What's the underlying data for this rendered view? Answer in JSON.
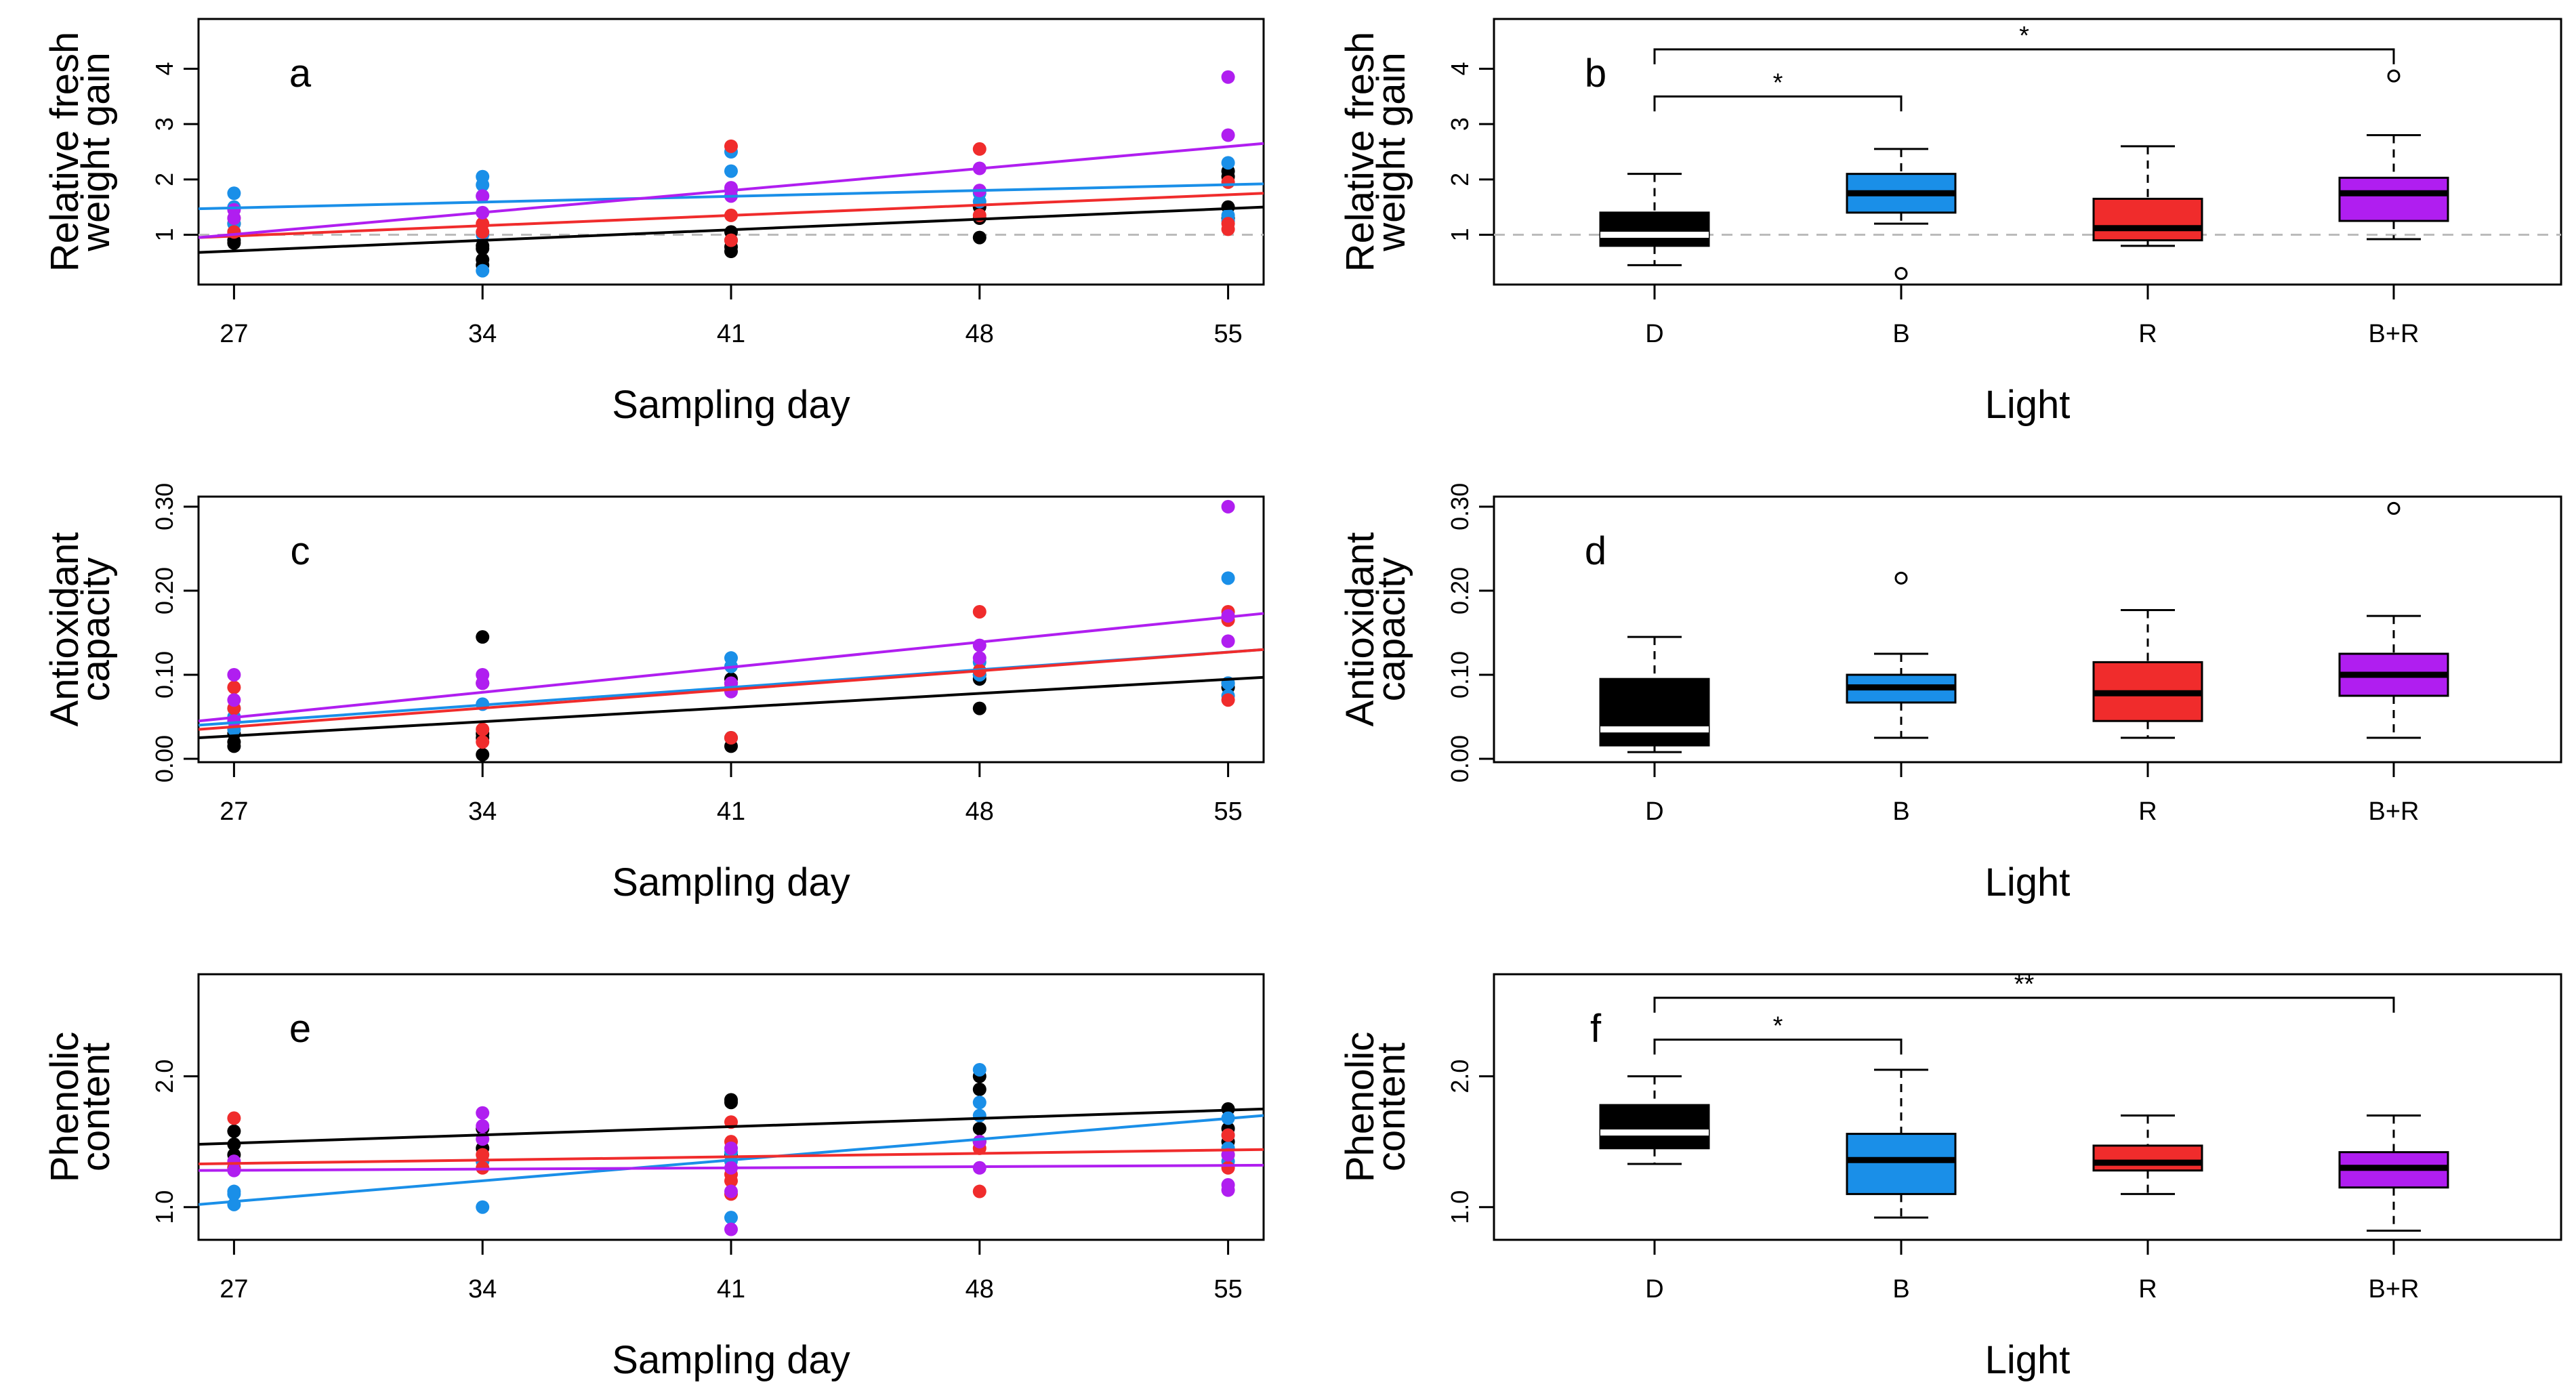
{
  "colors": {
    "D": "#000000",
    "B": "#1a8fe8",
    "R": "#f02c2c",
    "B+R": "#b01ef0",
    "reference_line": "#bbbbbb",
    "axis": "#000000",
    "median_on_dark": "#ffffff"
  },
  "chart_data": [
    {
      "id": "a",
      "type": "scatter",
      "panel_label": "a",
      "xlabel": "Sampling day",
      "ylabel_lines": [
        "Relative fresh",
        "weight gain"
      ],
      "x_ticks": [
        27,
        34,
        41,
        48,
        55
      ],
      "x_tick_labels": [
        "27",
        "34",
        "41",
        "48",
        "55"
      ],
      "y_ticks": [
        1,
        2,
        3,
        4
      ],
      "y_tick_labels": [
        "1",
        "2",
        "3",
        "4"
      ],
      "xlim": [
        26,
        56
      ],
      "ylim": [
        0.1,
        4.9
      ],
      "reference_y": 1.0,
      "series": [
        {
          "name": "D",
          "points": [
            [
              27,
              0.85
            ],
            [
              27,
              0.9
            ],
            [
              27,
              1.05
            ],
            [
              27,
              1.2
            ],
            [
              34,
              0.45
            ],
            [
              34,
              0.55
            ],
            [
              34,
              0.75
            ],
            [
              34,
              0.8
            ],
            [
              41,
              0.7
            ],
            [
              41,
              0.78
            ],
            [
              41,
              0.9
            ],
            [
              41,
              1.05
            ],
            [
              48,
              0.95
            ],
            [
              48,
              1.3
            ],
            [
              48,
              1.5
            ],
            [
              55,
              1.3
            ],
            [
              55,
              1.5
            ],
            [
              55,
              2.05
            ],
            [
              55,
              2.15
            ]
          ],
          "fit": [
            0.68,
            1.5
          ]
        },
        {
          "name": "B",
          "points": [
            [
              27,
              1.2
            ],
            [
              27,
              1.5
            ],
            [
              27,
              1.75
            ],
            [
              34,
              0.35
            ],
            [
              34,
              1.0
            ],
            [
              34,
              1.7
            ],
            [
              34,
              1.9
            ],
            [
              34,
              2.05
            ],
            [
              41,
              1.8
            ],
            [
              41,
              2.15
            ],
            [
              41,
              2.5
            ],
            [
              48,
              1.6
            ],
            [
              48,
              1.75
            ],
            [
              55,
              1.25
            ],
            [
              55,
              1.35
            ],
            [
              55,
              2.3
            ]
          ],
          "fit": [
            1.47,
            1.92
          ]
        },
        {
          "name": "R",
          "points": [
            [
              27,
              1.05
            ],
            [
              27,
              1.3
            ],
            [
              34,
              1.05
            ],
            [
              34,
              1.2
            ],
            [
              41,
              0.9
            ],
            [
              41,
              1.35
            ],
            [
              41,
              2.6
            ],
            [
              48,
              1.35
            ],
            [
              48,
              2.55
            ],
            [
              55,
              1.1
            ],
            [
              55,
              1.2
            ],
            [
              55,
              1.95
            ]
          ],
          "fit": [
            0.95,
            1.75
          ]
        },
        {
          "name": "B+R",
          "points": [
            [
              27,
              1.3
            ],
            [
              27,
              1.45
            ],
            [
              34,
              1.4
            ],
            [
              34,
              1.7
            ],
            [
              41,
              1.7
            ],
            [
              41,
              1.85
            ],
            [
              48,
              2.2
            ],
            [
              48,
              1.8
            ],
            [
              55,
              2.8
            ],
            [
              55,
              3.85
            ]
          ],
          "fit": [
            0.95,
            2.65
          ]
        }
      ]
    },
    {
      "id": "b",
      "type": "boxplot",
      "panel_label": "b",
      "xlabel": "Light",
      "ylabel_lines": [
        "Relative fresh",
        "weight gain"
      ],
      "categories": [
        "D",
        "B",
        "R",
        "B+R"
      ],
      "y_ticks": [
        1,
        2,
        3,
        4
      ],
      "y_tick_labels": [
        "1",
        "2",
        "3",
        "4"
      ],
      "ylim": [
        0.1,
        4.9
      ],
      "reference_y": 1.0,
      "boxes": [
        {
          "name": "D",
          "min": 0.45,
          "q1": 0.8,
          "median": 1.0,
          "q3": 1.4,
          "max": 2.1,
          "outliers": []
        },
        {
          "name": "B",
          "min": 1.2,
          "q1": 1.4,
          "median": 1.75,
          "q3": 2.1,
          "max": 2.55,
          "outliers": [
            0.3
          ]
        },
        {
          "name": "R",
          "min": 0.8,
          "q1": 0.9,
          "median": 1.12,
          "q3": 1.65,
          "max": 2.6,
          "outliers": []
        },
        {
          "name": "B+R",
          "min": 0.92,
          "q1": 1.25,
          "median": 1.75,
          "q3": 2.03,
          "max": 2.8,
          "outliers": [
            3.87
          ]
        }
      ],
      "significance": [
        {
          "from": "D",
          "to": "B",
          "y": 3.5,
          "label": "*"
        },
        {
          "from": "D",
          "to": "B+R",
          "y": 4.35,
          "label": "*"
        }
      ]
    },
    {
      "id": "c",
      "type": "scatter",
      "panel_label": "c",
      "xlabel": "Sampling day",
      "ylabel_lines": [
        "Antioxidant",
        "capacity"
      ],
      "x_ticks": [
        27,
        34,
        41,
        48,
        55
      ],
      "x_tick_labels": [
        "27",
        "34",
        "41",
        "48",
        "55"
      ],
      "y_ticks": [
        0,
        0.1,
        0.2,
        0.3
      ],
      "y_tick_labels": [
        "0.00",
        "0.10",
        "0.20",
        "0.30"
      ],
      "xlim": [
        26,
        56
      ],
      "ylim": [
        -0.004,
        0.312
      ],
      "series": [
        {
          "name": "D",
          "points": [
            [
              27,
              0.015
            ],
            [
              27,
              0.02
            ],
            [
              27,
              0.03
            ],
            [
              34,
              0.005
            ],
            [
              34,
              0.025
            ],
            [
              34,
              0.03
            ],
            [
              34,
              0.145
            ],
            [
              41,
              0.015
            ],
            [
              41,
              0.025
            ],
            [
              41,
              0.09
            ],
            [
              41,
              0.095
            ],
            [
              48,
              0.06
            ],
            [
              48,
              0.095
            ],
            [
              48,
              0.1
            ],
            [
              55,
              0.085
            ],
            [
              55,
              0.09
            ]
          ],
          "fit": [
            0.025,
            0.097
          ]
        },
        {
          "name": "B",
          "points": [
            [
              27,
              0.035
            ],
            [
              27,
              0.05
            ],
            [
              27,
              0.06
            ],
            [
              34,
              0.065
            ],
            [
              34,
              0.09
            ],
            [
              41,
              0.11
            ],
            [
              41,
              0.12
            ],
            [
              48,
              0.1
            ],
            [
              48,
              0.115
            ],
            [
              55,
              0.075
            ],
            [
              55,
              0.09
            ],
            [
              55,
              0.215
            ]
          ],
          "fit": [
            0.04,
            0.13
          ]
        },
        {
          "name": "R",
          "points": [
            [
              27,
              0.06
            ],
            [
              27,
              0.085
            ],
            [
              34,
              0.02
            ],
            [
              34,
              0.035
            ],
            [
              34,
              0.09
            ],
            [
              41,
              0.025
            ],
            [
              41,
              0.085
            ],
            [
              48,
              0.105
            ],
            [
              48,
              0.175
            ],
            [
              55,
              0.07
            ],
            [
              55,
              0.165
            ],
            [
              55,
              0.175
            ]
          ],
          "fit": [
            0.035,
            0.13
          ]
        },
        {
          "name": "B+R",
          "points": [
            [
              27,
              0.045
            ],
            [
              27,
              0.07
            ],
            [
              27,
              0.1
            ],
            [
              34,
              0.09
            ],
            [
              34,
              0.1
            ],
            [
              41,
              0.08
            ],
            [
              41,
              0.09
            ],
            [
              48,
              0.12
            ],
            [
              48,
              0.135
            ],
            [
              55,
              0.14
            ],
            [
              55,
              0.17
            ],
            [
              55,
              0.3
            ]
          ],
          "fit": [
            0.045,
            0.173
          ]
        }
      ]
    },
    {
      "id": "d",
      "type": "boxplot",
      "panel_label": "d",
      "xlabel": "Light",
      "ylabel_lines": [
        "Antioxidant",
        "capacity"
      ],
      "categories": [
        "D",
        "B",
        "R",
        "B+R"
      ],
      "y_ticks": [
        0,
        0.1,
        0.2,
        0.3
      ],
      "y_tick_labels": [
        "0.00",
        "0.10",
        "0.20",
        "0.30"
      ],
      "ylim": [
        -0.004,
        0.312
      ],
      "boxes": [
        {
          "name": "D",
          "min": 0.008,
          "q1": 0.016,
          "median": 0.035,
          "q3": 0.095,
          "max": 0.145,
          "outliers": []
        },
        {
          "name": "B",
          "min": 0.025,
          "q1": 0.067,
          "median": 0.085,
          "q3": 0.1,
          "max": 0.125,
          "outliers": [
            0.215
          ]
        },
        {
          "name": "R",
          "min": 0.025,
          "q1": 0.045,
          "median": 0.078,
          "q3": 0.115,
          "max": 0.177,
          "outliers": []
        },
        {
          "name": "B+R",
          "min": 0.025,
          "q1": 0.075,
          "median": 0.1,
          "q3": 0.125,
          "max": 0.17,
          "outliers": [
            0.298
          ]
        }
      ],
      "significance": []
    },
    {
      "id": "e",
      "type": "scatter",
      "panel_label": "e",
      "xlabel": "Sampling day",
      "ylabel_lines": [
        "Phenolic",
        "content"
      ],
      "x_ticks": [
        27,
        34,
        41,
        48,
        55
      ],
      "x_tick_labels": [
        "27",
        "34",
        "41",
        "48",
        "55"
      ],
      "y_ticks": [
        1.0,
        2.0
      ],
      "y_tick_labels": [
        "1.0",
        "2.0"
      ],
      "xlim": [
        26,
        56
      ],
      "ylim": [
        0.75,
        2.78
      ],
      "series": [
        {
          "name": "D",
          "points": [
            [
              27,
              1.3
            ],
            [
              27,
              1.4
            ],
            [
              27,
              1.48
            ],
            [
              27,
              1.58
            ],
            [
              34,
              1.35
            ],
            [
              34,
              1.45
            ],
            [
              34,
              1.6
            ],
            [
              41,
              1.4
            ],
            [
              41,
              1.8
            ],
            [
              41,
              1.82
            ],
            [
              48,
              1.5
            ],
            [
              48,
              1.6
            ],
            [
              48,
              1.9
            ],
            [
              48,
              2.0
            ],
            [
              55,
              1.5
            ],
            [
              55,
              1.6
            ],
            [
              55,
              1.75
            ]
          ],
          "fit": [
            1.48,
            1.75
          ]
        },
        {
          "name": "B",
          "points": [
            [
              27,
              1.02
            ],
            [
              27,
              1.1
            ],
            [
              27,
              1.12
            ],
            [
              34,
              1.0
            ],
            [
              34,
              1.35
            ],
            [
              41,
              0.92
            ],
            [
              41,
              1.35
            ],
            [
              41,
              1.42
            ],
            [
              48,
              1.7
            ],
            [
              48,
              1.8
            ],
            [
              48,
              2.05
            ],
            [
              55,
              1.35
            ],
            [
              55,
              1.45
            ],
            [
              55,
              1.55
            ],
            [
              55,
              1.68
            ]
          ],
          "fit": [
            1.02,
            1.7
          ]
        },
        {
          "name": "R",
          "points": [
            [
              27,
              1.68
            ],
            [
              27,
              1.3
            ],
            [
              34,
              1.3
            ],
            [
              34,
              1.4
            ],
            [
              41,
              1.1
            ],
            [
              41,
              1.2
            ],
            [
              41,
              1.25
            ],
            [
              41,
              1.5
            ],
            [
              41,
              1.65
            ],
            [
              48,
              1.12
            ],
            [
              48,
              1.45
            ],
            [
              48,
              1.5
            ],
            [
              55,
              1.3
            ],
            [
              55,
              1.4
            ],
            [
              55,
              1.55
            ]
          ],
          "fit": [
            1.33,
            1.44
          ]
        },
        {
          "name": "B+R",
          "points": [
            [
              27,
              1.28
            ],
            [
              27,
              1.35
            ],
            [
              34,
              1.52
            ],
            [
              34,
              1.62
            ],
            [
              34,
              1.72
            ],
            [
              41,
              0.83
            ],
            [
              41,
              1.12
            ],
            [
              41,
              1.3
            ],
            [
              41,
              1.45
            ],
            [
              48,
              1.3
            ],
            [
              48,
              1.5
            ],
            [
              55,
              1.13
            ],
            [
              55,
              1.17
            ],
            [
              55,
              1.4
            ]
          ],
          "fit": [
            1.28,
            1.32
          ]
        }
      ]
    },
    {
      "id": "f",
      "type": "boxplot",
      "panel_label": "f",
      "xlabel": "Light",
      "ylabel_lines": [
        "Phenolic",
        "content"
      ],
      "categories": [
        "D",
        "B",
        "R",
        "B+R"
      ],
      "y_ticks": [
        1.0,
        2.0
      ],
      "y_tick_labels": [
        "1.0",
        "2.0"
      ],
      "ylim": [
        0.75,
        2.78
      ],
      "boxes": [
        {
          "name": "D",
          "min": 1.33,
          "q1": 1.45,
          "median": 1.57,
          "q3": 1.78,
          "max": 2.0,
          "outliers": []
        },
        {
          "name": "B",
          "min": 0.92,
          "q1": 1.1,
          "median": 1.36,
          "q3": 1.56,
          "max": 2.05,
          "outliers": []
        },
        {
          "name": "R",
          "min": 1.1,
          "q1": 1.28,
          "median": 1.34,
          "q3": 1.47,
          "max": 1.7,
          "outliers": []
        },
        {
          "name": "B+R",
          "min": 0.82,
          "q1": 1.15,
          "median": 1.3,
          "q3": 1.42,
          "max": 1.7,
          "outliers": []
        }
      ],
      "significance": [
        {
          "from": "D",
          "to": "B",
          "y": 2.28,
          "label": "*"
        },
        {
          "from": "D",
          "to": "B+R",
          "y": 2.6,
          "label": "**"
        }
      ]
    }
  ]
}
